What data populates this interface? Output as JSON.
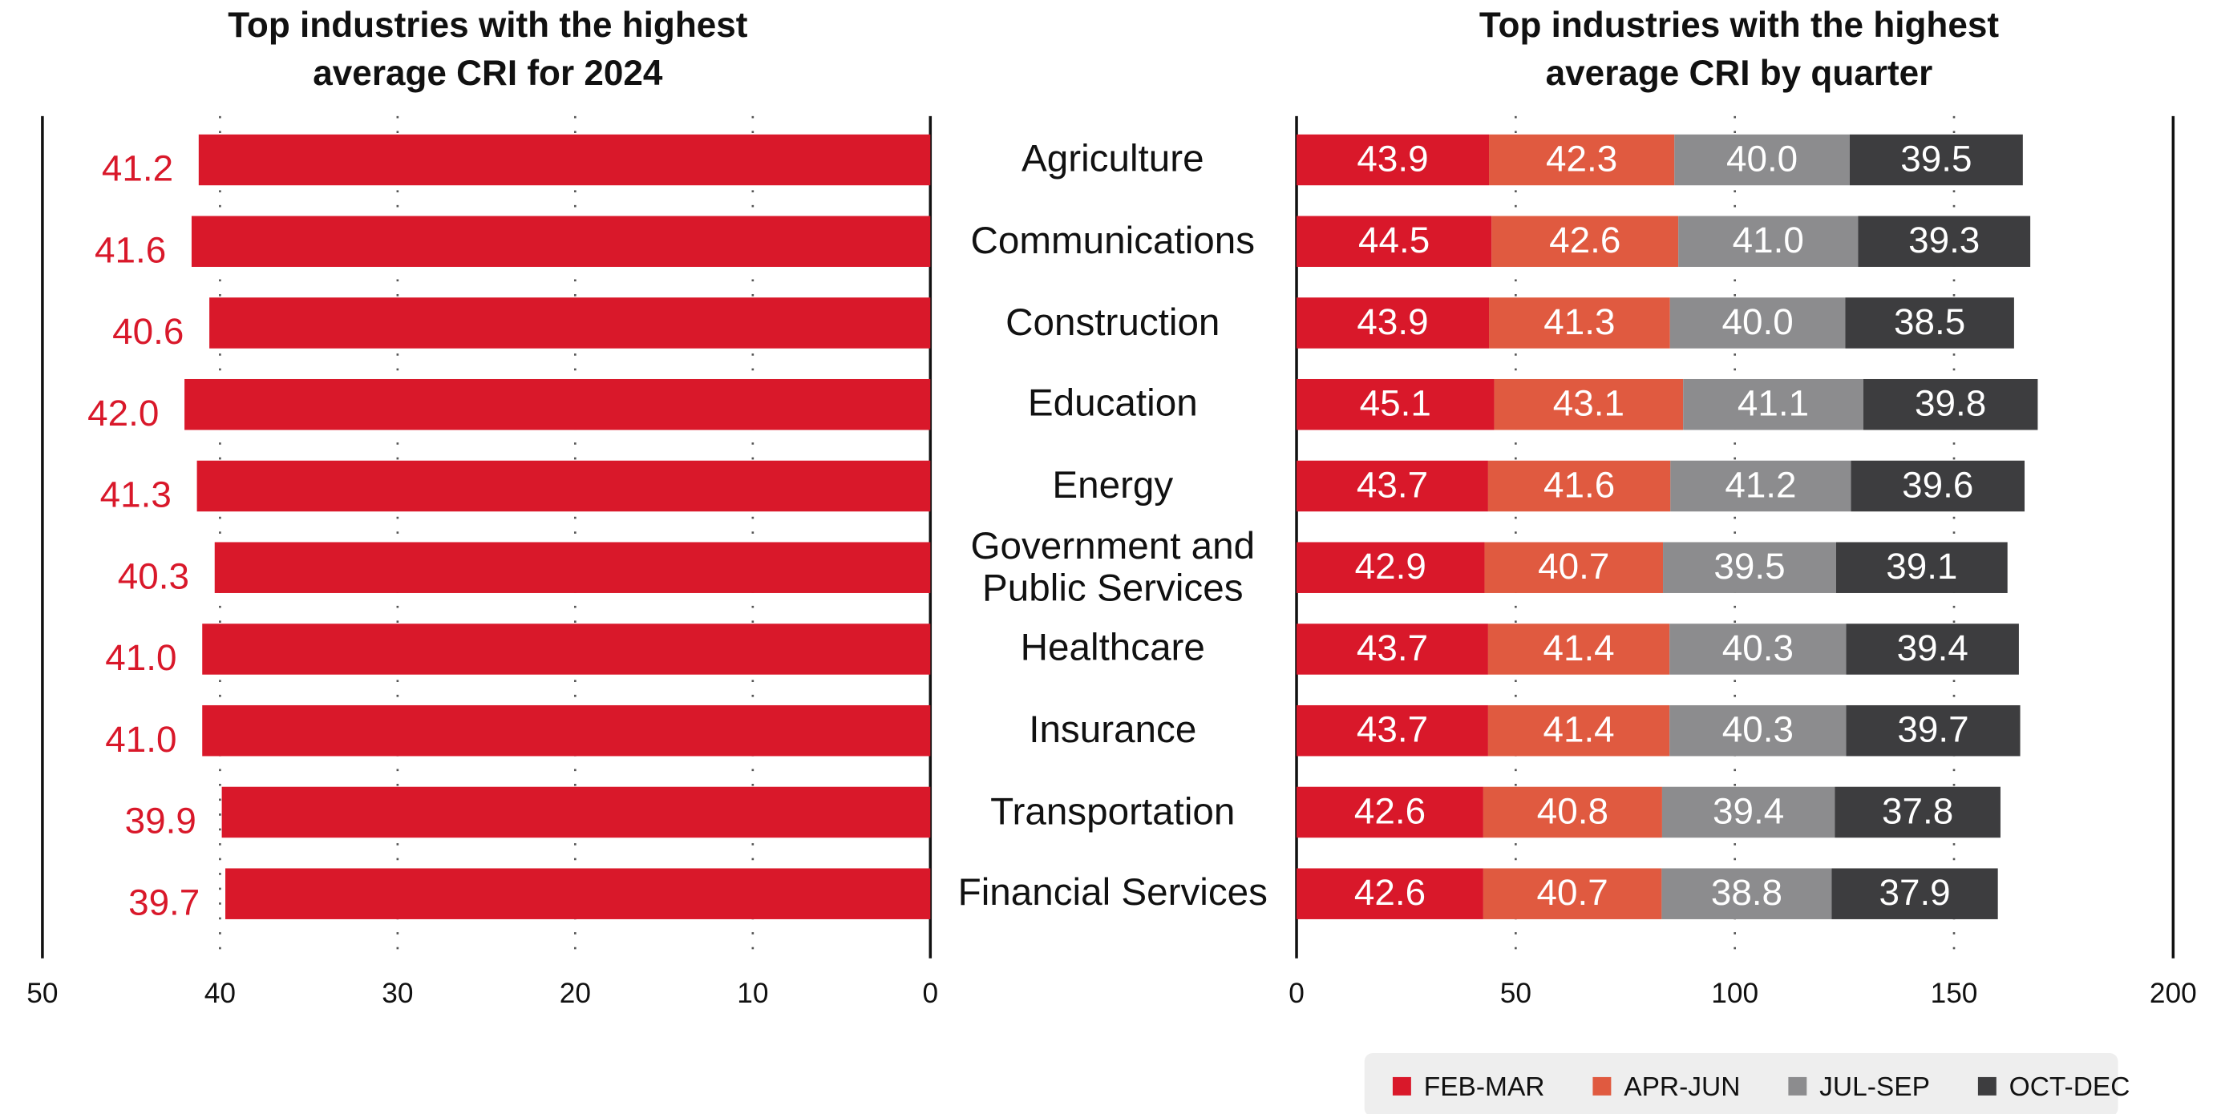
{
  "chart_data": [
    {
      "type": "bar",
      "orientation": "horizontal",
      "title": "Top industries with the highest average CRI for 2024",
      "categories": [
        "Agriculture",
        "Communications",
        "Construction",
        "Education",
        "Energy",
        "Government and Public Services",
        "Healthcare",
        "Insurance",
        "Transportation",
        "Financial Services"
      ],
      "values": [
        41.2,
        41.6,
        40.6,
        42.0,
        41.3,
        40.3,
        41.0,
        41.0,
        39.9,
        39.7
      ],
      "value_labels": [
        "41.2",
        "41.6",
        "40.6",
        "42.0",
        "41.3",
        "40.3",
        "41.0",
        "41.0",
        "39.9",
        "39.7"
      ],
      "color": "#d9182a",
      "xlim": [
        50,
        0
      ],
      "xticks": [
        50,
        40,
        30,
        20,
        10,
        0
      ],
      "grid": true
    },
    {
      "type": "stacked_bar",
      "orientation": "horizontal",
      "title": "Top industries with the highest average CRI by quarter",
      "series": [
        {
          "name": "FEB-MAR",
          "color": "#d9182a",
          "values": [
            43.9,
            44.5,
            43.9,
            45.1,
            43.7,
            42.9,
            43.7,
            43.7,
            42.6,
            42.6
          ],
          "value_labels": [
            "43.9",
            "44.5",
            "43.9",
            "45.1",
            "43.7",
            "42.9",
            "43.7",
            "43.7",
            "42.6",
            "42.6"
          ]
        },
        {
          "name": "APR-JUN",
          "color": "#e05a40",
          "values": [
            42.3,
            42.6,
            41.3,
            43.1,
            41.6,
            40.7,
            41.4,
            41.4,
            40.8,
            40.7
          ],
          "value_labels": [
            "42.3",
            "42.6",
            "41.3",
            "43.1",
            "41.6",
            "40.7",
            "41.4",
            "41.4",
            "40.8",
            "40.7"
          ]
        },
        {
          "name": "JUL-SEP",
          "color": "#8c8c8e",
          "values": [
            40.0,
            41.0,
            40.0,
            41.1,
            41.2,
            39.5,
            40.3,
            40.3,
            39.4,
            38.8
          ],
          "value_labels": [
            "40.0",
            "41.0",
            "40.0",
            "41.1",
            "41.2",
            "39.5",
            "40.3",
            "40.3",
            "39.4",
            "38.8"
          ]
        },
        {
          "name": "OCT-DEC",
          "color": "#3d3d3f",
          "values": [
            39.5,
            39.3,
            38.5,
            39.8,
            39.6,
            39.1,
            39.4,
            39.7,
            37.8,
            37.9
          ],
          "value_labels": [
            "39.5",
            "39.3",
            "38.5",
            "39.8",
            "39.6",
            "39.1",
            "39.4",
            "39.7",
            "37.8",
            "37.9"
          ]
        }
      ],
      "xlim": [
        0,
        200
      ],
      "xticks": [
        0,
        50,
        100,
        150,
        200
      ],
      "grid": true,
      "legend": "bottom-right"
    }
  ]
}
